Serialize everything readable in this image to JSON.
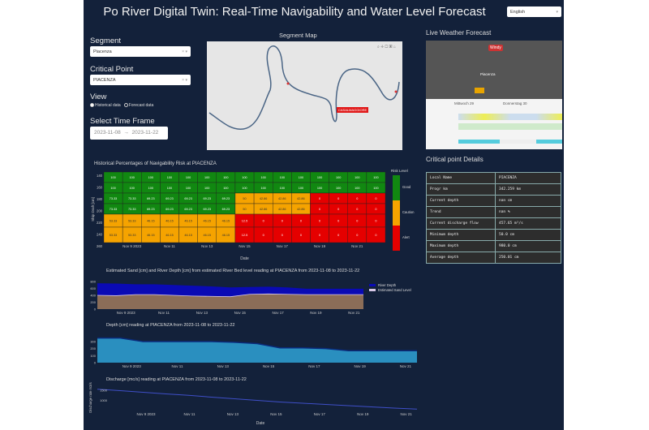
{
  "header": {
    "title": "Po River Digital Twin: Real-Time Navigability and Water Level Forecast",
    "language": "English"
  },
  "sidebar": {
    "segment_label": "Segment",
    "segment_value": "Piacenza",
    "critical_label": "Critical Point",
    "critical_value": "PIACENZA",
    "view_label": "View",
    "view_options": [
      "Historical data",
      "Forecast data"
    ],
    "view_selected": "Historical data",
    "timeframe_label": "Select Time Frame",
    "start_date": "2023-11-08",
    "arrow": "→",
    "end_date": "2023-11-22"
  },
  "map": {
    "title": "Segment Map",
    "marker_label": "CASALMAGGIORE"
  },
  "weather": {
    "title": "Live Weather Forecast",
    "brand": "Windy",
    "city": "Piacenza",
    "days": [
      "Mittwoch 29",
      "Donnerstag 30"
    ]
  },
  "details": {
    "title": "Critical point Details",
    "rows": [
      [
        "Local Name",
        "PIACENZA"
      ],
      [
        "Progr km",
        "342.259 km"
      ],
      [
        "Current depth",
        "nan cm"
      ],
      [
        "Trend",
        "nan %"
      ],
      [
        "Current discharge flow",
        "457.65 m³/s"
      ],
      [
        "Minimum depth",
        "50.0 cm"
      ],
      [
        "Maximum depth",
        "980.0 cm"
      ],
      [
        "Average depth",
        "250.01 cm"
      ]
    ]
  },
  "colors": {
    "background": "#13213a",
    "good": "#118811",
    "caution": "#f5a300",
    "alert": "#e50000",
    "river_depth": "#0a0ab4",
    "sand": "#8b6d58",
    "depth_fill": "#2a8fbf",
    "discharge_line": "#3f4fc8"
  },
  "chart_data": [
    {
      "type": "heatmap",
      "title": "Historical Percentages of Navigability Risk at PIACENZA",
      "xlabel": "Date",
      "ylabel": "Ship Draft [cm]",
      "x": [
        "Nov 8",
        "Nov 9",
        "Nov 10",
        "Nov 11",
        "Nov 12",
        "Nov 13",
        "Nov 14",
        "Nov 15",
        "Nov 16",
        "Nov 17",
        "Nov 18",
        "Nov 19",
        "Nov 20",
        "Nov 21",
        "Nov 22"
      ],
      "x_ticks": [
        "Nov 9\n2023",
        "Nov 11",
        "Nov 13",
        "Nov 15",
        "Nov 17",
        "Nov 19",
        "Nov 21"
      ],
      "y_ticks": [
        140,
        160,
        180,
        200,
        220,
        240,
        260
      ],
      "y": [
        140,
        160,
        180,
        200,
        220,
        250
      ],
      "values": [
        [
          100,
          100,
          100,
          100,
          100,
          100,
          100,
          100,
          100,
          100,
          100,
          100,
          100,
          100,
          100
        ],
        [
          100,
          100,
          100,
          100,
          100,
          100,
          100,
          100,
          100,
          100,
          100,
          100,
          100,
          100,
          100
        ],
        [
          73.33,
          73.33,
          69.23,
          69.23,
          69.23,
          69.23,
          69.23,
          50,
          42.86,
          42.86,
          42.86,
          0,
          0,
          0,
          0
        ],
        [
          73.33,
          73.33,
          69.23,
          69.23,
          69.23,
          69.23,
          69.23,
          50,
          42.86,
          42.86,
          42.86,
          0,
          0,
          0,
          0
        ],
        [
          53.33,
          53.33,
          46.15,
          46.15,
          46.15,
          46.15,
          46.15,
          12.5,
          0,
          0,
          0,
          0,
          0,
          0,
          0
        ],
        [
          53.33,
          53.33,
          46.15,
          46.15,
          46.15,
          46.15,
          46.15,
          12.5,
          0,
          0,
          0,
          0,
          0,
          0,
          0
        ]
      ],
      "colorbar": {
        "title": "Risk Level",
        "labels": [
          "Good",
          "Caution",
          "Alert"
        ]
      }
    },
    {
      "type": "area",
      "title": "Estimated Sand [cm] and  River Depth [cm] from estimated River Bed level reading at PIACENZA from 2023-11-08 to 2023-11-22",
      "x": [
        "Nov 8",
        "Nov 9",
        "Nov 10",
        "Nov 11",
        "Nov 12",
        "Nov 13",
        "Nov 14",
        "Nov 15",
        "Nov 16",
        "Nov 17",
        "Nov 18",
        "Nov 19",
        "Nov 20",
        "Nov 21",
        "Nov 22"
      ],
      "x_ticks": [
        "Nov 9\n2023",
        "Nov 11",
        "Nov 13",
        "Nov 15",
        "Nov 17",
        "Nov 19",
        "Nov 21"
      ],
      "ylim": [
        0,
        800
      ],
      "y_ticks": [
        0,
        200,
        400,
        600,
        800
      ],
      "legend": "right",
      "series": [
        {
          "name": "River Depth",
          "values": [
            350,
            350,
            300,
            300,
            300,
            300,
            290,
            270,
            210,
            210,
            200,
            170,
            170,
            170,
            170
          ]
        },
        {
          "name": "Estimated Sand Level",
          "values": [
            400,
            390,
            420,
            420,
            400,
            380,
            370,
            360,
            430,
            440,
            430,
            420,
            420,
            420,
            420
          ]
        }
      ]
    },
    {
      "type": "area",
      "title": "Depth [cm] reading at PIACENZA from 2023-11-08 to 2023-11-22",
      "x": [
        "Nov 8",
        "Nov 9",
        "Nov 10",
        "Nov 11",
        "Nov 12",
        "Nov 13",
        "Nov 14",
        "Nov 15",
        "Nov 16",
        "Nov 17",
        "Nov 18",
        "Nov 19",
        "Nov 20",
        "Nov 21",
        "Nov 22"
      ],
      "x_ticks": [
        "Nov 9\n2023",
        "Nov 11",
        "Nov 13",
        "Nov 15",
        "Nov 17",
        "Nov 19",
        "Nov 21"
      ],
      "ylim": [
        0,
        380
      ],
      "y_ticks": [
        0,
        100,
        200,
        300
      ],
      "values": [
        350,
        350,
        300,
        300,
        300,
        300,
        290,
        270,
        210,
        210,
        200,
        170,
        170,
        170,
        170
      ]
    },
    {
      "type": "line",
      "title": "Discharge [mc/s] reading at PIACENZA from 2023-11-08 to 2023-11-22",
      "xlabel": "Date",
      "ylabel": "Discharge rate m3/s",
      "x": [
        "Nov 8",
        "Nov 9",
        "Nov 10",
        "Nov 11",
        "Nov 12",
        "Nov 13",
        "Nov 14",
        "Nov 15",
        "Nov 16",
        "Nov 17",
        "Nov 18",
        "Nov 19",
        "Nov 20",
        "Nov 21",
        "Nov 22"
      ],
      "x_ticks": [
        "Nov 9\n2023",
        "Nov 11",
        "Nov 13",
        "Nov 15",
        "Nov 17",
        "Nov 19",
        "Nov 21"
      ],
      "ylim": [
        500,
        1700
      ],
      "y_ticks": [
        1000,
        1500
      ],
      "values": [
        1550,
        1480,
        1400,
        1320,
        1250,
        1160,
        1080,
        1000,
        920,
        860,
        800,
        740,
        680,
        620,
        570
      ]
    }
  ]
}
